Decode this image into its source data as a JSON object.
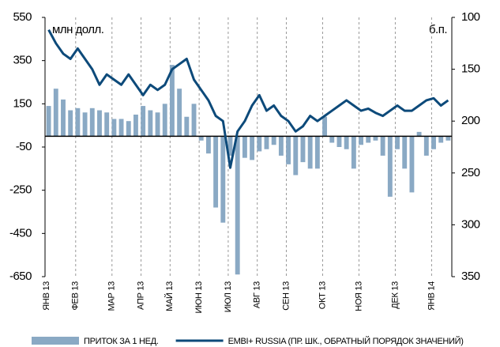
{
  "chart_data": {
    "type": "bar_line",
    "annotations": [
      "млн долл.",
      "б.п."
    ],
    "categories": [
      "ЯНВ 13",
      null,
      null,
      null,
      "ФЕВ 13",
      null,
      null,
      null,
      null,
      "МАР 13",
      null,
      null,
      null,
      "АПР 13",
      null,
      null,
      null,
      "МАЙ 13",
      null,
      null,
      null,
      "ИЮН 13",
      null,
      null,
      null,
      "ИЮЛ 13",
      null,
      null,
      null,
      "АВГ 13",
      null,
      null,
      null,
      "СЕН 13",
      null,
      null,
      null,
      null,
      "ОКТ 13",
      null,
      null,
      null,
      null,
      "НОЯ 13",
      null,
      null,
      null,
      null,
      "ДЕК 13",
      null,
      null,
      null,
      null,
      "ЯНВ 14",
      null,
      null
    ],
    "series": [
      {
        "name": "ПРИТОК ЗА 1 НЕД.",
        "color": "#8aa9c4",
        "axis": "y",
        "values": [
          140,
          220,
          170,
          120,
          130,
          110,
          130,
          120,
          110,
          80,
          80,
          70,
          100,
          140,
          120,
          110,
          150,
          330,
          220,
          90,
          150,
          -20,
          -80,
          -330,
          -400,
          -90,
          -640,
          -100,
          -110,
          -70,
          -60,
          -40,
          -90,
          -130,
          -180,
          -120,
          -150,
          -150,
          90,
          -30,
          -50,
          -60,
          -150,
          -40,
          -30,
          -20,
          -90,
          -280,
          -60,
          -150,
          -260,
          20,
          -90,
          -60,
          -30,
          -20
        ]
      },
      {
        "name": "EMBI+ RUSSIA (ПР. ШК., ОБРАТНЫЙ ПОРЯДОК ЗНАЧЕНИЙ)",
        "color": "#0d4a7a",
        "axis": "y2",
        "values": [
          112,
          125,
          135,
          140,
          130,
          140,
          150,
          165,
          155,
          160,
          165,
          155,
          165,
          175,
          165,
          170,
          165,
          150,
          145,
          140,
          160,
          170,
          180,
          195,
          200,
          245,
          210,
          200,
          185,
          175,
          190,
          185,
          195,
          200,
          210,
          205,
          195,
          200,
          195,
          190,
          185,
          180,
          185,
          190,
          188,
          192,
          195,
          190,
          185,
          190,
          190,
          185,
          180,
          178,
          185,
          180
        ]
      }
    ],
    "ylim": [
      -650,
      550
    ],
    "yticks": [
      550,
      350,
      150,
      -50,
      -250,
      -450,
      -650
    ],
    "y2lim": [
      350,
      100
    ],
    "y2ticks": [
      100,
      150,
      200,
      250,
      300,
      350
    ],
    "grid": true
  }
}
